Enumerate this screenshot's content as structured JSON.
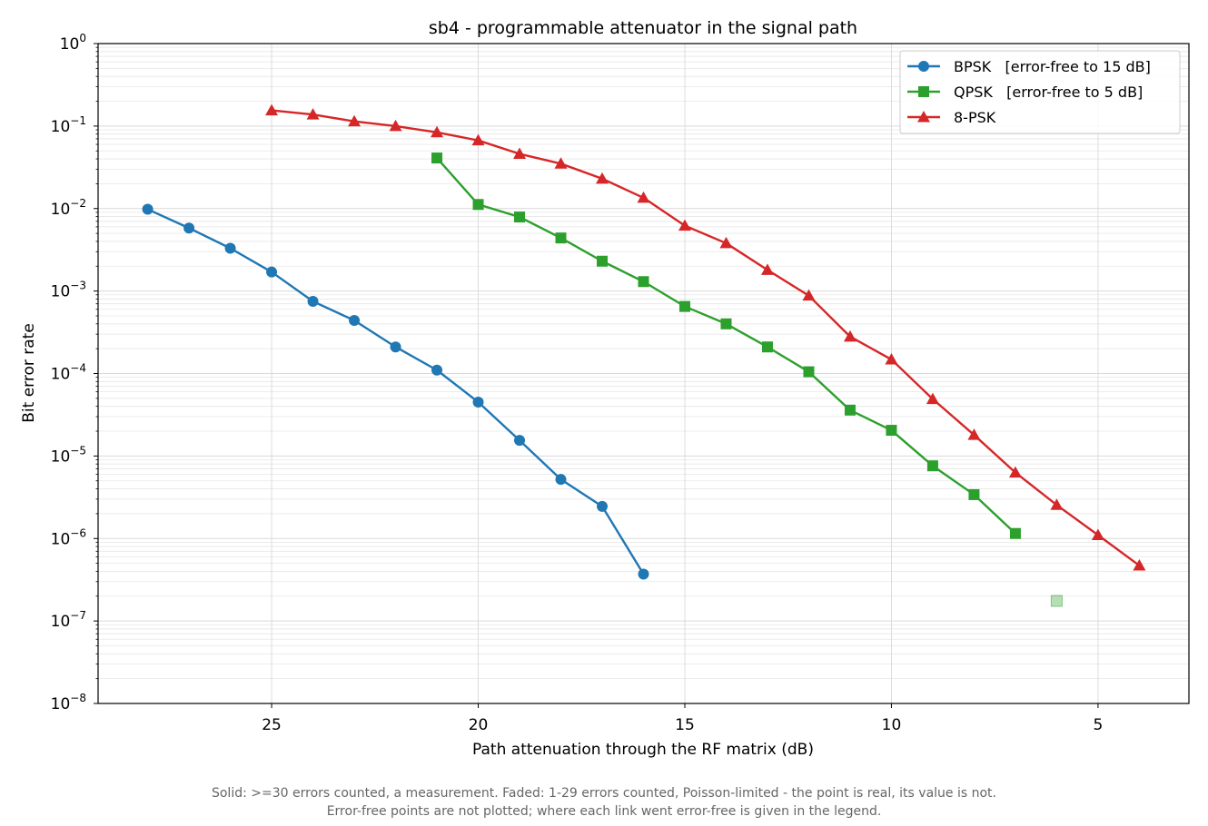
{
  "chart_data": {
    "type": "line",
    "title": "sb4 - programmable attenuator in the signal path",
    "xlabel": "Path attenuation through the RF matrix (dB)",
    "ylabel": "Bit error rate",
    "x_reversed": true,
    "xlim": [
      29.2,
      2.8
    ],
    "xticks": [
      25,
      20,
      15,
      10,
      5
    ],
    "y_scale": "log",
    "ylim": [
      1e-08,
      1
    ],
    "yticks": [
      {
        "exp": -8,
        "base": "10",
        "sup": "−8"
      },
      {
        "exp": -7,
        "base": "10",
        "sup": "−7"
      },
      {
        "exp": -6,
        "base": "10",
        "sup": "−6"
      },
      {
        "exp": -5,
        "base": "10",
        "sup": "−5"
      },
      {
        "exp": -4,
        "base": "10",
        "sup": "−4"
      },
      {
        "exp": -3,
        "base": "10",
        "sup": "−3"
      },
      {
        "exp": -2,
        "base": "10",
        "sup": "−2"
      },
      {
        "exp": -1,
        "base": "10",
        "sup": "−1"
      },
      {
        "exp": 0,
        "base": "10",
        "sup": "0"
      }
    ],
    "grid": true,
    "legend_position": "top-right",
    "series": [
      {
        "name": "BPSK   [error-free to 15 dB]",
        "color": "#1f77b4",
        "marker": "circle",
        "x": [
          28,
          27,
          26,
          25,
          24,
          23,
          22,
          21,
          20,
          19,
          18,
          17,
          16
        ],
        "y": [
          0.0098,
          0.0058,
          0.0033,
          0.0017,
          0.00075,
          0.00044,
          0.00021,
          0.00011,
          4.5e-05,
          1.55e-05,
          5.2e-06,
          2.45e-06,
          3.7e-07
        ]
      },
      {
        "name": "QPSK   [error-free to 5 dB]",
        "color": "#2ca02c",
        "marker": "square",
        "x": [
          21,
          20,
          19,
          18,
          17,
          16,
          15,
          14,
          13,
          12,
          11,
          10,
          9,
          8,
          7
        ],
        "y": [
          0.041,
          0.0112,
          0.0079,
          0.0044,
          0.0023,
          0.0013,
          0.00065,
          0.0004,
          0.00021,
          0.000105,
          3.6e-05,
          2.05e-05,
          7.6e-06,
          3.4e-06,
          1.15e-06
        ],
        "faded_points": [
          {
            "x": 6,
            "y": 1.75e-07
          }
        ]
      },
      {
        "name": "8-PSK",
        "color": "#d62728",
        "marker": "triangle",
        "x": [
          25,
          24,
          23,
          22,
          21,
          20,
          19,
          18,
          17,
          16,
          15,
          14,
          13,
          12,
          11,
          10,
          9,
          8,
          7,
          6,
          5,
          4
        ],
        "y": [
          0.155,
          0.138,
          0.114,
          0.1,
          0.084,
          0.067,
          0.046,
          0.035,
          0.023,
          0.0135,
          0.0062,
          0.0038,
          0.0018,
          0.00088,
          0.00028,
          0.000148,
          4.9e-05,
          1.8e-05,
          6.3e-06,
          2.55e-06,
          1.1e-06,
          4.7e-07
        ]
      }
    ]
  },
  "footnote": {
    "line1": "Solid: >=30 errors counted, a measurement.   Faded: 1-29 errors counted, Poisson-limited - the point is real, its value is not.",
    "line2": "Error-free points are not plotted; where each link went error-free is given in the legend."
  }
}
